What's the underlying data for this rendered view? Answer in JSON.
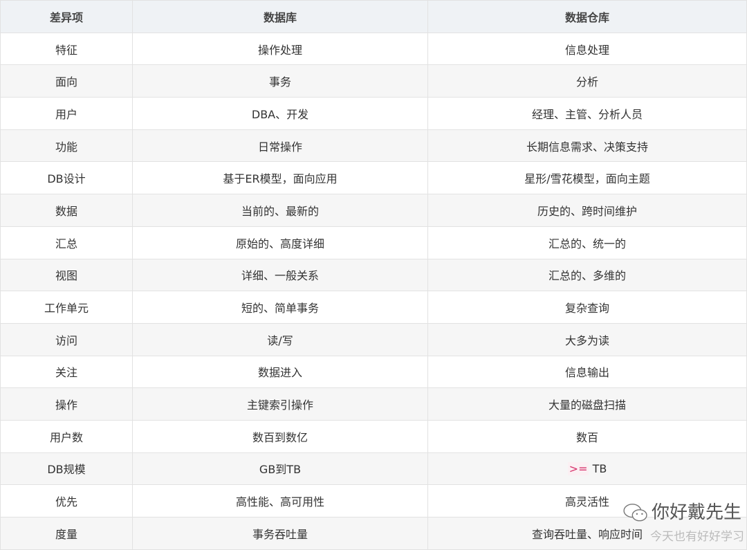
{
  "headers": [
    "差异项",
    "数据库",
    "数据仓库"
  ],
  "rows": [
    [
      "特征",
      "操作处理",
      "信息处理"
    ],
    [
      "面向",
      "事务",
      "分析"
    ],
    [
      "用户",
      "DBA、开发",
      "经理、主管、分析人员"
    ],
    [
      "功能",
      "日常操作",
      "长期信息需求、决策支持"
    ],
    [
      "DB设计",
      "基于ER模型，面向应用",
      "星形/雪花模型，面向主题"
    ],
    [
      "数据",
      "当前的、最新的",
      "历史的、跨时间维护"
    ],
    [
      "汇总",
      "原始的、高度详细",
      "汇总的、统一的"
    ],
    [
      "视图",
      "详细、一般关系",
      "汇总的、多维的"
    ],
    [
      "工作单元",
      "短的、简单事务",
      "复杂查询"
    ],
    [
      "访问",
      "读/写",
      "大多为读"
    ],
    [
      "关注",
      "数据进入",
      "信息输出"
    ],
    [
      "操作",
      "主键索引操作",
      "大量的磁盘扫描"
    ],
    [
      "用户数",
      "数百到数亿",
      "数百"
    ],
    [
      "DB规模",
      "GB到TB",
      ">= TB"
    ],
    [
      "优先",
      "高性能、高可用性",
      "高灵活性"
    ],
    [
      "度量",
      "事务吞吐量",
      "查询吞吐量、响应时间"
    ]
  ],
  "highlight": {
    "text": ">=",
    "rest": " TB",
    "color": "#d6336c"
  },
  "watermark": {
    "name": "你好戴先生",
    "sub": "今天也有好好学习",
    "icon": "wechat-icon"
  }
}
